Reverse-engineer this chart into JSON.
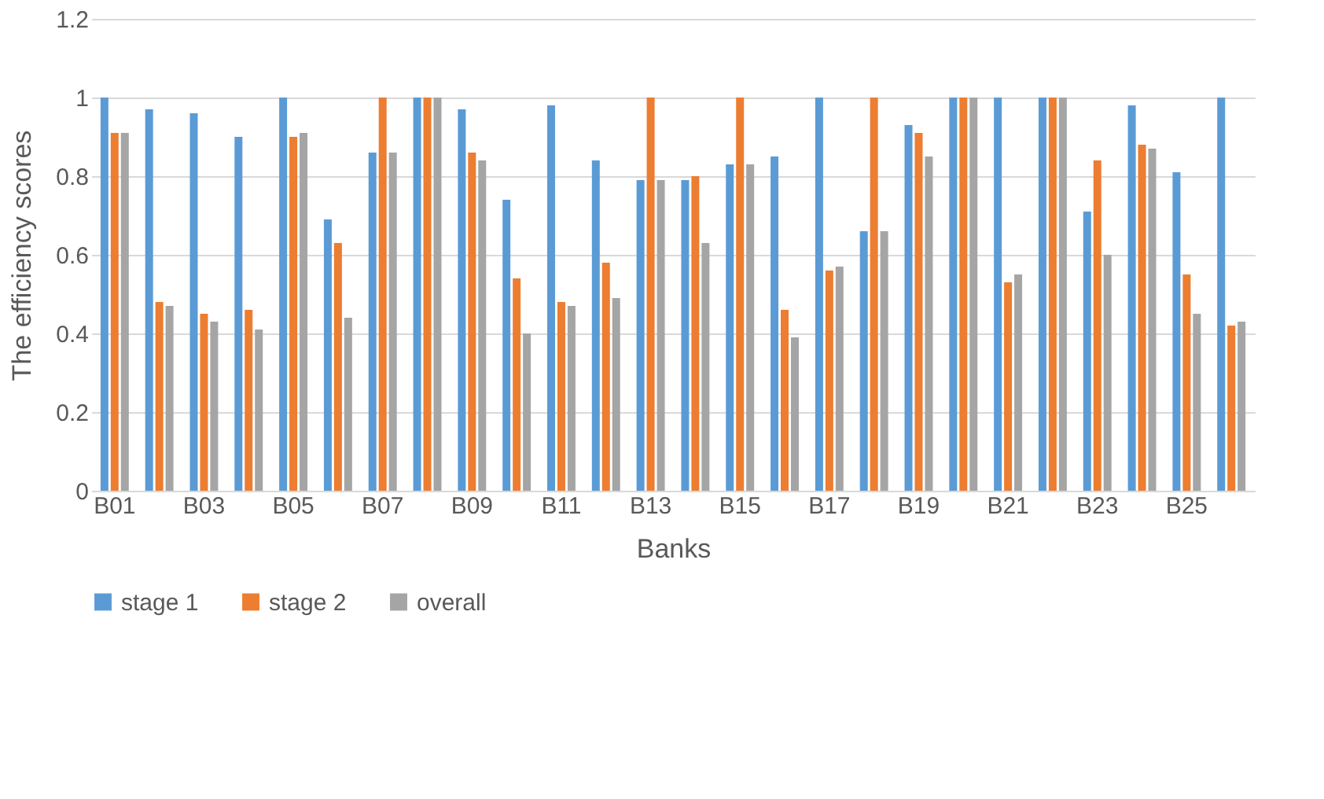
{
  "chart_data": {
    "type": "bar",
    "xlabel": "Banks",
    "ylabel": "The efficiency scores",
    "categories": [
      "B01",
      null,
      "B03",
      null,
      "B05",
      null,
      "B07",
      null,
      "B09",
      null,
      "B11",
      null,
      "B13",
      null,
      "B15",
      null,
      "B17",
      null,
      "B19",
      null,
      "B21",
      null,
      "B23",
      null,
      "B25",
      null
    ],
    "series": [
      {
        "name": "stage 1",
        "color": "#5b9bd5",
        "values": [
          1,
          0.97,
          0.96,
          0.9,
          1,
          0.69,
          0.86,
          1,
          0.97,
          0.74,
          0.98,
          0.84,
          0.79,
          0.79,
          0.83,
          0.85,
          1,
          0.66,
          0.93,
          1,
          1,
          1,
          0.71,
          0.98,
          0.81,
          1
        ]
      },
      {
        "name": "stage 2",
        "color": "#ed7d31",
        "values": [
          0.91,
          0.48,
          0.45,
          0.46,
          0.9,
          0.63,
          1,
          1,
          0.86,
          0.54,
          0.48,
          0.58,
          1,
          0.8,
          1,
          0.46,
          0.56,
          1,
          0.91,
          1,
          0.53,
          1,
          0.84,
          0.88,
          0.55,
          0.42
        ]
      },
      {
        "name": "overall",
        "color": "#a5a5a5",
        "values": [
          0.91,
          0.47,
          0.43,
          0.41,
          0.91,
          0.44,
          0.86,
          1,
          0.84,
          0.4,
          0.47,
          0.49,
          0.79,
          0.63,
          0.83,
          0.39,
          0.57,
          0.66,
          0.85,
          1,
          0.55,
          1,
          0.6,
          0.87,
          0.45,
          0.43
        ]
      }
    ],
    "ylim": [
      0,
      1.2
    ],
    "yticks": [
      0,
      0.2,
      0.4,
      0.6,
      0.8,
      1,
      1.2
    ],
    "grid": "y",
    "legend": "bottom"
  }
}
